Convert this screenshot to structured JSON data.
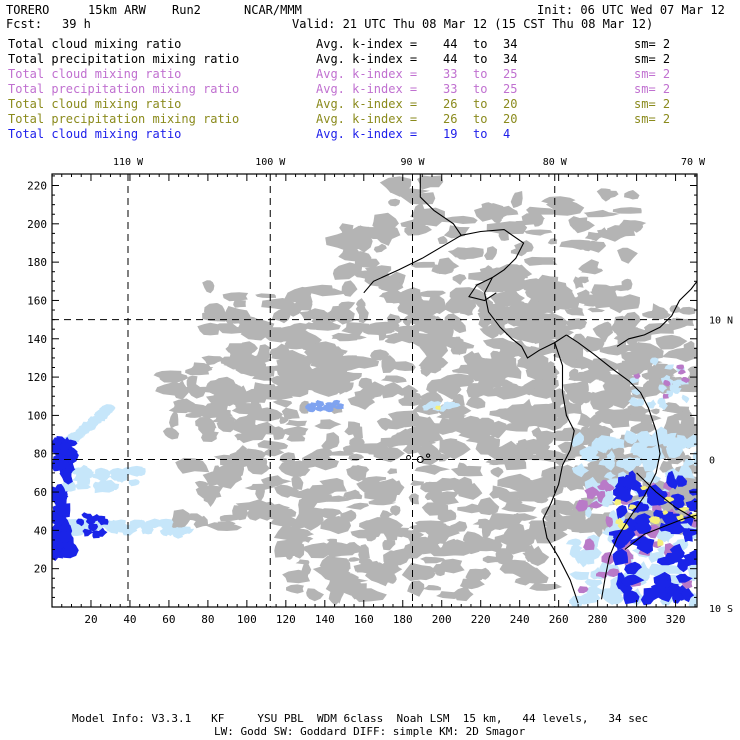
{
  "header": {
    "model": "TORERO",
    "resolution": "15km ARW",
    "run": "Run2",
    "org": "NCAR/MMM",
    "init": "Init: 06 UTC Wed 07 Mar 12",
    "fcst_label": "Fcst:",
    "fcst_value": "39 h",
    "valid": "Valid: 21 UTC Thu 08 Mar 12 (15 CST Thu 08 Mar 12)"
  },
  "fields": [
    {
      "name": "Total cloud mixing ratio",
      "kindex": "Avg. k-index =",
      "k_from": "44",
      "to": "to",
      "k_to": "34",
      "sm": "sm= 2",
      "color": "#000000"
    },
    {
      "name": "Total precipitation mixing ratio",
      "kindex": "Avg. k-index =",
      "k_from": "44",
      "to": "to",
      "k_to": "34",
      "sm": "sm= 2",
      "color": "#000000"
    },
    {
      "name": "Total cloud mixing ratio",
      "kindex": "Avg. k-index =",
      "k_from": "33",
      "to": "to",
      "k_to": "25",
      "sm": "sm= 2",
      "color": "#c070d0"
    },
    {
      "name": "Total precipitation mixing ratio",
      "kindex": "Avg. k-index =",
      "k_from": "33",
      "to": "to",
      "k_to": "25",
      "sm": "sm= 2",
      "color": "#c070d0"
    },
    {
      "name": "Total cloud mixing ratio",
      "kindex": "Avg. k-index =",
      "k_from": "26",
      "to": "to",
      "k_to": "20",
      "sm": "sm= 2",
      "color": "#8a8a1c"
    },
    {
      "name": "Total precipitation mixing ratio",
      "kindex": "Avg. k-index =",
      "k_from": "26",
      "to": "to",
      "k_to": "20",
      "sm": "sm= 2",
      "color": "#8a8a1c"
    },
    {
      "name": "Total cloud mixing ratio",
      "kindex": "Avg. k-index =",
      "k_from": "19",
      "to": "to",
      "k_to": "4",
      "sm": "",
      "color": "#1d1dea"
    }
  ],
  "map": {
    "lon_labels": [
      "110 W",
      "100 W",
      "90 W",
      "80 W",
      "70 W"
    ],
    "lat_labels": [
      "10 N",
      "0",
      "10 S"
    ],
    "x_ticks": [
      "20",
      "40",
      "60",
      "80",
      "100",
      "120",
      "140",
      "160",
      "180",
      "200",
      "220",
      "240",
      "260",
      "280",
      "300",
      "320"
    ],
    "y_ticks": [
      "220",
      "200",
      "180",
      "160",
      "140",
      "120",
      "100",
      "80",
      "60",
      "40",
      "20"
    ],
    "colors": {
      "cloud_gray": "#b4b4b4",
      "purple": "#b97ac8",
      "light_blue": "#c6e6fa",
      "mid_blue": "#7fa3f0",
      "blue": "#1a24e8",
      "yellow": "#f5f07a"
    }
  },
  "footer": {
    "line1": "Model Info: V3.3.1   KF     YSU PBL  WDM 6class  Noah LSM  15 km,   44 levels,   34 sec",
    "line2": "LW: Godd SW: Goddard DIFF: simple KM: 2D Smagor"
  }
}
